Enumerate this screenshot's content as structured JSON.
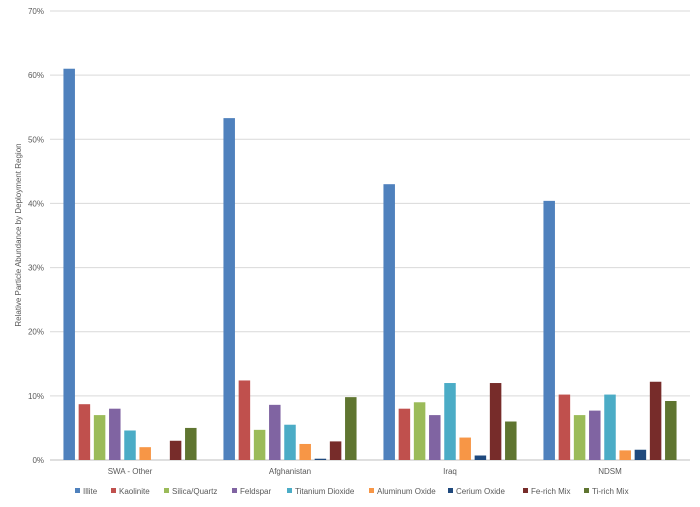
{
  "chart_data": {
    "type": "bar",
    "ylabel": "Relative Particle Abundance by Deployment Region",
    "xlabel": "",
    "ylim": [
      0,
      70
    ],
    "y_tick_values": [
      0,
      10,
      20,
      30,
      40,
      50,
      60,
      70
    ],
    "y_tick_suffix": "%",
    "grid": true,
    "legend_position": "bottom",
    "categories": [
      "SWA - Other",
      "Afghanistan",
      "Iraq",
      "NDSM"
    ],
    "series": [
      {
        "name": "Illite",
        "color": "#4F81BD",
        "values": [
          61.0,
          53.3,
          43.0,
          40.4
        ]
      },
      {
        "name": "Kaolinite",
        "color": "#C0504D",
        "values": [
          8.7,
          12.4,
          8.0,
          10.2
        ]
      },
      {
        "name": "Silica/Quartz",
        "color": "#9BBB59",
        "values": [
          7.0,
          4.7,
          9.0,
          7.0
        ]
      },
      {
        "name": "Feldspar",
        "color": "#8064A2",
        "values": [
          8.0,
          8.6,
          7.0,
          7.7
        ]
      },
      {
        "name": "Titanium Dioxide",
        "color": "#4BACC6",
        "values": [
          4.6,
          5.5,
          12.0,
          10.2
        ]
      },
      {
        "name": "Aluminum Oxide",
        "color": "#F79646",
        "values": [
          2.0,
          2.5,
          3.5,
          1.5
        ]
      },
      {
        "name": "Cerium Oxide",
        "color": "#1F497D",
        "values": [
          0.0,
          0.2,
          0.7,
          1.6
        ]
      },
      {
        "name": "Fe-rich Mix",
        "color": "#772C2A",
        "values": [
          3.0,
          2.9,
          12.0,
          12.2
        ]
      },
      {
        "name": "Ti-rich Mix",
        "color": "#5F7530",
        "values": [
          5.0,
          9.8,
          6.0,
          9.2
        ]
      }
    ]
  }
}
